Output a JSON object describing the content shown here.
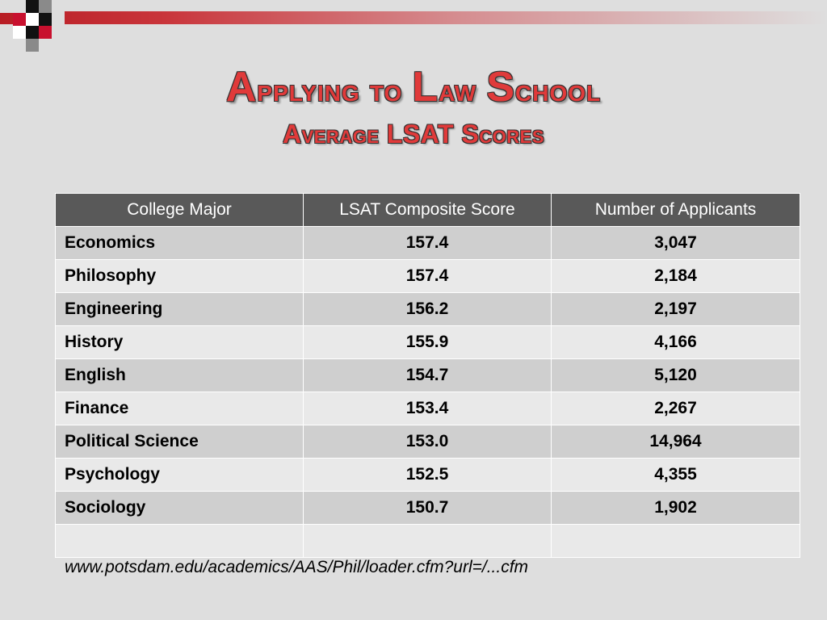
{
  "slide": {
    "title_first": "A",
    "title_rest": "pplying to ",
    "title_l": "L",
    "title_law": "aw ",
    "title_s": "S",
    "title_school": "chool",
    "subtitle": "Average LSAT Scores"
  },
  "table": {
    "headers": [
      "College Major",
      "LSAT Composite Score",
      "Number of Applicants"
    ],
    "rows": [
      [
        "Economics",
        "157.4",
        "3,047"
      ],
      [
        "Philosophy",
        "157.4",
        "2,184"
      ],
      [
        "Engineering",
        "156.2",
        "2,197"
      ],
      [
        "History",
        "155.9",
        "4,166"
      ],
      [
        "English",
        "154.7",
        "5,120"
      ],
      [
        "Finance",
        "153.4",
        "2,267"
      ],
      [
        "Political Science",
        "153.0",
        "14,964"
      ],
      [
        "Psychology",
        "152.5",
        "4,355"
      ],
      [
        "Sociology",
        "150.7",
        "1,902"
      ],
      [
        "",
        "",
        ""
      ]
    ]
  },
  "source": "www.potsdam.edu/academics/AAS/Phil/loader.cfm?url=/...cfm",
  "colors": {
    "accent_red": "#e03a3a",
    "header_gray": "#595959",
    "background": "#dedede"
  }
}
